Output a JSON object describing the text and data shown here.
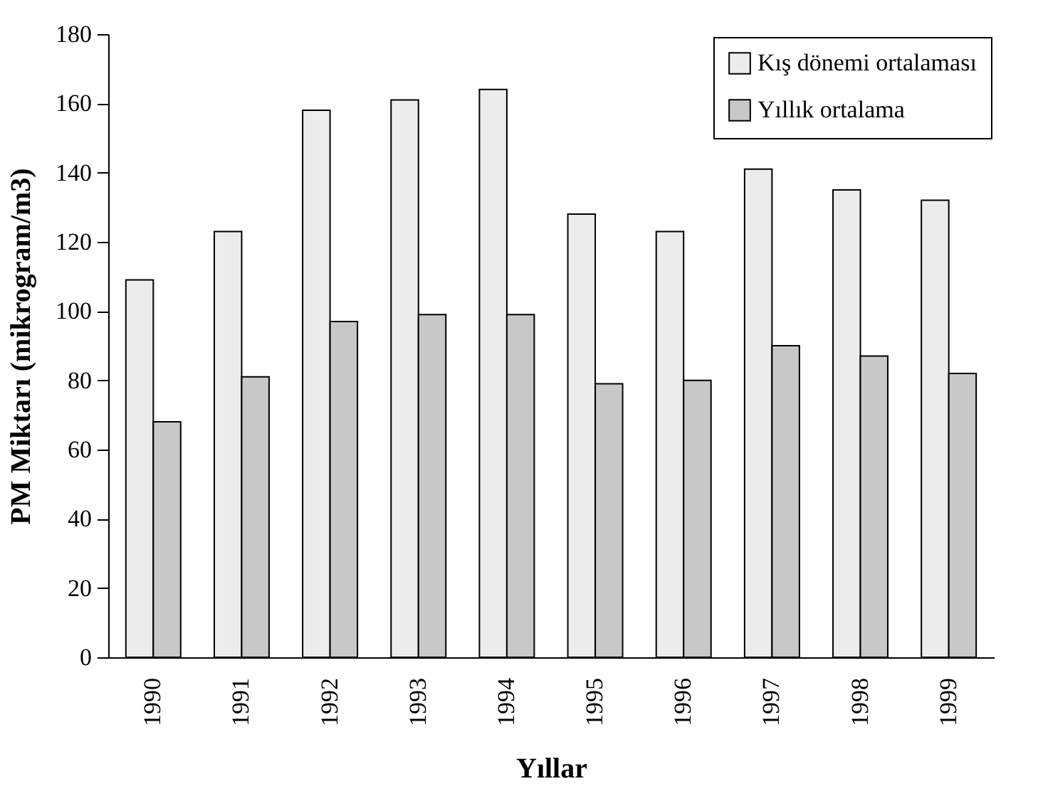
{
  "chart_data": {
    "type": "bar",
    "xlabel": "Yıllar",
    "ylabel": "PM Miktarı (mikrogram/m3)",
    "categories": [
      "1990",
      "1991",
      "1992",
      "1993",
      "1994",
      "1995",
      "1996",
      "1997",
      "1998",
      "1999"
    ],
    "series": [
      {
        "name": "Kış dönemi ortalaması",
        "color": "#ececec",
        "values": [
          109,
          123,
          158,
          161,
          164,
          128,
          123,
          141,
          135,
          132
        ]
      },
      {
        "name": "Yıllık ortalama",
        "color": "#c8c8c8",
        "values": [
          68,
          81,
          97,
          99,
          99,
          79,
          80,
          90,
          87,
          82
        ]
      }
    ],
    "ylim": [
      0,
      180
    ],
    "yticks": [
      0,
      20,
      40,
      60,
      80,
      100,
      120,
      140,
      160,
      180
    ],
    "grid": false,
    "legend": "top right"
  }
}
